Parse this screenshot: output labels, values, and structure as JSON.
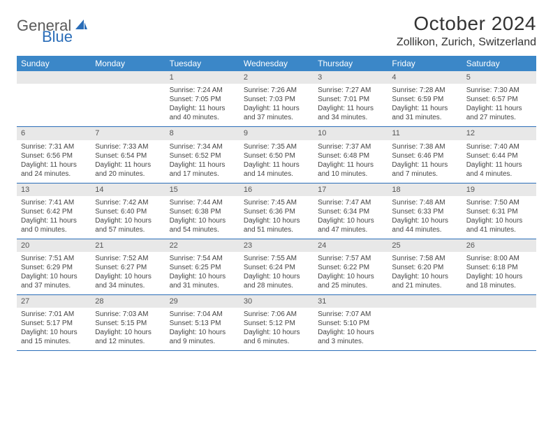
{
  "logo": {
    "text1": "General",
    "text2": "Blue"
  },
  "title": "October 2024",
  "location": "Zollikon, Zurich, Switzerland",
  "colors": {
    "header_bg": "#3b87c8",
    "header_text": "#ffffff",
    "daynum_bg": "#e8e8e8",
    "daynum_text": "#555555",
    "body_text": "#444444",
    "border": "#2a6db8",
    "logo_gray": "#5a5a5a",
    "logo_blue": "#2a6db8"
  },
  "day_names": [
    "Sunday",
    "Monday",
    "Tuesday",
    "Wednesday",
    "Thursday",
    "Friday",
    "Saturday"
  ],
  "weeks": [
    [
      null,
      null,
      {
        "n": "1",
        "sr": "Sunrise: 7:24 AM",
        "ss": "Sunset: 7:05 PM",
        "d1": "Daylight: 11 hours",
        "d2": "and 40 minutes."
      },
      {
        "n": "2",
        "sr": "Sunrise: 7:26 AM",
        "ss": "Sunset: 7:03 PM",
        "d1": "Daylight: 11 hours",
        "d2": "and 37 minutes."
      },
      {
        "n": "3",
        "sr": "Sunrise: 7:27 AM",
        "ss": "Sunset: 7:01 PM",
        "d1": "Daylight: 11 hours",
        "d2": "and 34 minutes."
      },
      {
        "n": "4",
        "sr": "Sunrise: 7:28 AM",
        "ss": "Sunset: 6:59 PM",
        "d1": "Daylight: 11 hours",
        "d2": "and 31 minutes."
      },
      {
        "n": "5",
        "sr": "Sunrise: 7:30 AM",
        "ss": "Sunset: 6:57 PM",
        "d1": "Daylight: 11 hours",
        "d2": "and 27 minutes."
      }
    ],
    [
      {
        "n": "6",
        "sr": "Sunrise: 7:31 AM",
        "ss": "Sunset: 6:56 PM",
        "d1": "Daylight: 11 hours",
        "d2": "and 24 minutes."
      },
      {
        "n": "7",
        "sr": "Sunrise: 7:33 AM",
        "ss": "Sunset: 6:54 PM",
        "d1": "Daylight: 11 hours",
        "d2": "and 20 minutes."
      },
      {
        "n": "8",
        "sr": "Sunrise: 7:34 AM",
        "ss": "Sunset: 6:52 PM",
        "d1": "Daylight: 11 hours",
        "d2": "and 17 minutes."
      },
      {
        "n": "9",
        "sr": "Sunrise: 7:35 AM",
        "ss": "Sunset: 6:50 PM",
        "d1": "Daylight: 11 hours",
        "d2": "and 14 minutes."
      },
      {
        "n": "10",
        "sr": "Sunrise: 7:37 AM",
        "ss": "Sunset: 6:48 PM",
        "d1": "Daylight: 11 hours",
        "d2": "and 10 minutes."
      },
      {
        "n": "11",
        "sr": "Sunrise: 7:38 AM",
        "ss": "Sunset: 6:46 PM",
        "d1": "Daylight: 11 hours",
        "d2": "and 7 minutes."
      },
      {
        "n": "12",
        "sr": "Sunrise: 7:40 AM",
        "ss": "Sunset: 6:44 PM",
        "d1": "Daylight: 11 hours",
        "d2": "and 4 minutes."
      }
    ],
    [
      {
        "n": "13",
        "sr": "Sunrise: 7:41 AM",
        "ss": "Sunset: 6:42 PM",
        "d1": "Daylight: 11 hours",
        "d2": "and 0 minutes."
      },
      {
        "n": "14",
        "sr": "Sunrise: 7:42 AM",
        "ss": "Sunset: 6:40 PM",
        "d1": "Daylight: 10 hours",
        "d2": "and 57 minutes."
      },
      {
        "n": "15",
        "sr": "Sunrise: 7:44 AM",
        "ss": "Sunset: 6:38 PM",
        "d1": "Daylight: 10 hours",
        "d2": "and 54 minutes."
      },
      {
        "n": "16",
        "sr": "Sunrise: 7:45 AM",
        "ss": "Sunset: 6:36 PM",
        "d1": "Daylight: 10 hours",
        "d2": "and 51 minutes."
      },
      {
        "n": "17",
        "sr": "Sunrise: 7:47 AM",
        "ss": "Sunset: 6:34 PM",
        "d1": "Daylight: 10 hours",
        "d2": "and 47 minutes."
      },
      {
        "n": "18",
        "sr": "Sunrise: 7:48 AM",
        "ss": "Sunset: 6:33 PM",
        "d1": "Daylight: 10 hours",
        "d2": "and 44 minutes."
      },
      {
        "n": "19",
        "sr": "Sunrise: 7:50 AM",
        "ss": "Sunset: 6:31 PM",
        "d1": "Daylight: 10 hours",
        "d2": "and 41 minutes."
      }
    ],
    [
      {
        "n": "20",
        "sr": "Sunrise: 7:51 AM",
        "ss": "Sunset: 6:29 PM",
        "d1": "Daylight: 10 hours",
        "d2": "and 37 minutes."
      },
      {
        "n": "21",
        "sr": "Sunrise: 7:52 AM",
        "ss": "Sunset: 6:27 PM",
        "d1": "Daylight: 10 hours",
        "d2": "and 34 minutes."
      },
      {
        "n": "22",
        "sr": "Sunrise: 7:54 AM",
        "ss": "Sunset: 6:25 PM",
        "d1": "Daylight: 10 hours",
        "d2": "and 31 minutes."
      },
      {
        "n": "23",
        "sr": "Sunrise: 7:55 AM",
        "ss": "Sunset: 6:24 PM",
        "d1": "Daylight: 10 hours",
        "d2": "and 28 minutes."
      },
      {
        "n": "24",
        "sr": "Sunrise: 7:57 AM",
        "ss": "Sunset: 6:22 PM",
        "d1": "Daylight: 10 hours",
        "d2": "and 25 minutes."
      },
      {
        "n": "25",
        "sr": "Sunrise: 7:58 AM",
        "ss": "Sunset: 6:20 PM",
        "d1": "Daylight: 10 hours",
        "d2": "and 21 minutes."
      },
      {
        "n": "26",
        "sr": "Sunrise: 8:00 AM",
        "ss": "Sunset: 6:18 PM",
        "d1": "Daylight: 10 hours",
        "d2": "and 18 minutes."
      }
    ],
    [
      {
        "n": "27",
        "sr": "Sunrise: 7:01 AM",
        "ss": "Sunset: 5:17 PM",
        "d1": "Daylight: 10 hours",
        "d2": "and 15 minutes."
      },
      {
        "n": "28",
        "sr": "Sunrise: 7:03 AM",
        "ss": "Sunset: 5:15 PM",
        "d1": "Daylight: 10 hours",
        "d2": "and 12 minutes."
      },
      {
        "n": "29",
        "sr": "Sunrise: 7:04 AM",
        "ss": "Sunset: 5:13 PM",
        "d1": "Daylight: 10 hours",
        "d2": "and 9 minutes."
      },
      {
        "n": "30",
        "sr": "Sunrise: 7:06 AM",
        "ss": "Sunset: 5:12 PM",
        "d1": "Daylight: 10 hours",
        "d2": "and 6 minutes."
      },
      {
        "n": "31",
        "sr": "Sunrise: 7:07 AM",
        "ss": "Sunset: 5:10 PM",
        "d1": "Daylight: 10 hours",
        "d2": "and 3 minutes."
      },
      null,
      null
    ]
  ]
}
